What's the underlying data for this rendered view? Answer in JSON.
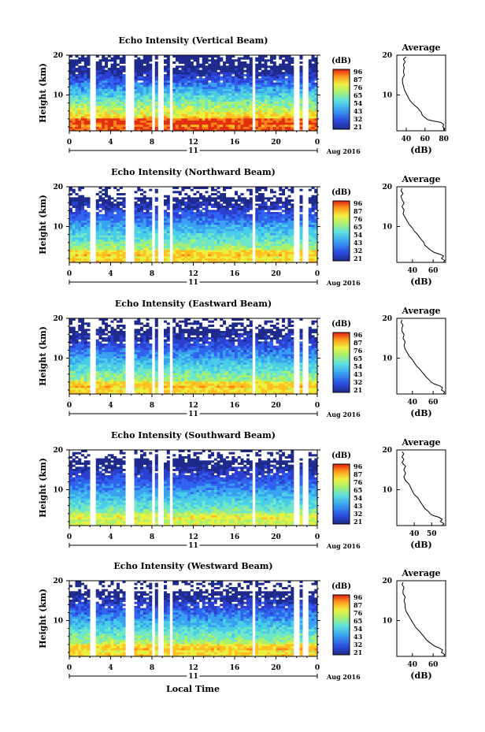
{
  "figure": {
    "x_axis_title": "Local Time",
    "date_label": "Aug 2016",
    "day_label": "11",
    "average_title": "Average",
    "average_xlabel": "(dB)",
    "colorbar_label": "(dB)",
    "height_label": "Height (km)"
  },
  "chart_data": [
    {
      "type": "heatmap",
      "title": "Echo Intensity (Vertical Beam)",
      "xlabel": "",
      "ylabel": "Height (km)",
      "x_ticks": [
        "0",
        "4",
        "8",
        "12",
        "16",
        "20",
        "0"
      ],
      "xlim": [
        0,
        24
      ],
      "ylim": [
        1,
        20
      ],
      "y_ticks": [
        "20",
        "10"
      ],
      "colorbar_ticks": [
        "96",
        "87",
        "76",
        "65",
        "54",
        "43",
        "32",
        "21"
      ],
      "average_ticks": [
        "40",
        "60",
        "80"
      ],
      "average_xlim": [
        30,
        82
      ],
      "average_profile": [
        [
          80,
          1
        ],
        [
          81,
          1.5
        ],
        [
          79,
          2
        ],
        [
          80,
          2.6
        ],
        [
          77,
          3.1
        ],
        [
          70,
          3.4
        ],
        [
          63,
          3.8
        ],
        [
          60,
          4.3
        ],
        [
          57,
          5
        ],
        [
          56,
          5.7
        ],
        [
          54,
          6.2
        ],
        [
          53,
          6.6
        ],
        [
          50,
          7.2
        ],
        [
          47,
          7.8
        ],
        [
          44,
          8.6
        ],
        [
          42,
          9.5
        ],
        [
          40,
          10.4
        ],
        [
          38,
          11.4
        ],
        [
          37,
          12.3
        ],
        [
          36,
          13.2
        ],
        [
          36,
          14.1
        ],
        [
          38,
          15
        ],
        [
          37,
          15.9
        ],
        [
          38,
          16.8
        ],
        [
          37,
          17.6
        ],
        [
          39,
          18.3
        ],
        [
          37,
          19
        ],
        [
          40,
          19.6
        ]
      ],
      "data_gaps_hours": [
        [
          2.1,
          2.5
        ],
        [
          5.3,
          6.2
        ],
        [
          7.9,
          8.3
        ],
        [
          8.7,
          9.2
        ],
        [
          9.7,
          10.1
        ],
        [
          17.7,
          18.1
        ],
        [
          21.8,
          22.2
        ],
        [
          22.7,
          23.0
        ]
      ]
    },
    {
      "type": "heatmap",
      "title": "Echo Intensity (Northward Beam)",
      "xlabel": "",
      "ylabel": "Height (km)",
      "x_ticks": [
        "0",
        "4",
        "8",
        "12",
        "16",
        "20",
        "0"
      ],
      "xlim": [
        0,
        24
      ],
      "ylim": [
        1,
        20
      ],
      "y_ticks": [
        "20",
        "10"
      ],
      "colorbar_ticks": [
        "96",
        "87",
        "76",
        "65",
        "54",
        "43",
        "32",
        "21"
      ],
      "average_ticks": [
        "40",
        "60"
      ],
      "average_xlim": [
        25,
        72
      ],
      "average_profile": [
        [
          70,
          1
        ],
        [
          71,
          1.5
        ],
        [
          68,
          2
        ],
        [
          70,
          2.6
        ],
        [
          66,
          3.1
        ],
        [
          61,
          3.5
        ],
        [
          58,
          4
        ],
        [
          55,
          4.6
        ],
        [
          52,
          5.3
        ],
        [
          51,
          6
        ],
        [
          49,
          6.6
        ],
        [
          47,
          7.3
        ],
        [
          45,
          8
        ],
        [
          42,
          8.8
        ],
        [
          40,
          9.6
        ],
        [
          37,
          10.5
        ],
        [
          35,
          11.4
        ],
        [
          33,
          12.3
        ],
        [
          31,
          13.2
        ],
        [
          32,
          14.1
        ],
        [
          30,
          15
        ],
        [
          32,
          15.9
        ],
        [
          30,
          16.8
        ],
        [
          29,
          17.6
        ],
        [
          31,
          18.3
        ],
        [
          29,
          19
        ],
        [
          30,
          19.6
        ]
      ],
      "data_gaps_hours": [
        [
          2.1,
          2.5
        ],
        [
          5.3,
          6.2
        ],
        [
          7.9,
          8.3
        ],
        [
          8.7,
          9.2
        ],
        [
          9.7,
          10.1
        ],
        [
          17.7,
          18.1
        ],
        [
          21.8,
          22.2
        ],
        [
          22.7,
          23.0
        ]
      ]
    },
    {
      "type": "heatmap",
      "title": "Echo Intensity (Eastward Beam)",
      "xlabel": "",
      "ylabel": "Height (km)",
      "x_ticks": [
        "0",
        "4",
        "8",
        "12",
        "16",
        "20",
        "0"
      ],
      "xlim": [
        0,
        24
      ],
      "ylim": [
        1,
        20
      ],
      "y_ticks": [
        "20",
        "10"
      ],
      "colorbar_ticks": [
        "96",
        "87",
        "76",
        "65",
        "54",
        "43",
        "32",
        "21"
      ],
      "average_ticks": [
        "40",
        "60"
      ],
      "average_xlim": [
        25,
        72
      ],
      "average_profile": [
        [
          70,
          1
        ],
        [
          71,
          1.5
        ],
        [
          68,
          2
        ],
        [
          69,
          2.6
        ],
        [
          66,
          3.1
        ],
        [
          61,
          3.5
        ],
        [
          58,
          4
        ],
        [
          56,
          4.6
        ],
        [
          53,
          5.3
        ],
        [
          51,
          6
        ],
        [
          49,
          6.6
        ],
        [
          47,
          7.3
        ],
        [
          44,
          8
        ],
        [
          42,
          8.8
        ],
        [
          40,
          9.6
        ],
        [
          37,
          10.5
        ],
        [
          35,
          11.4
        ],
        [
          33,
          12.3
        ],
        [
          32,
          13.2
        ],
        [
          33,
          14.1
        ],
        [
          31,
          15
        ],
        [
          32,
          15.9
        ],
        [
          30,
          16.8
        ],
        [
          30,
          17.6
        ],
        [
          31,
          18.3
        ],
        [
          29,
          19
        ],
        [
          30,
          19.6
        ]
      ],
      "data_gaps_hours": [
        [
          2.1,
          2.5
        ],
        [
          5.3,
          6.2
        ],
        [
          7.9,
          8.3
        ],
        [
          8.7,
          9.2
        ],
        [
          9.7,
          10.1
        ],
        [
          17.7,
          18.1
        ],
        [
          21.8,
          22.2
        ],
        [
          22.7,
          23.0
        ]
      ]
    },
    {
      "type": "heatmap",
      "title": "Echo Intensity (Southward Beam)",
      "xlabel": "",
      "ylabel": "Height (km)",
      "x_ticks": [
        "0",
        "4",
        "8",
        "12",
        "16",
        "20",
        "0"
      ],
      "xlim": [
        0,
        24
      ],
      "ylim": [
        1,
        20
      ],
      "y_ticks": [
        "20",
        "10"
      ],
      "colorbar_ticks": [
        "96",
        "87",
        "76",
        "65",
        "54",
        "43",
        "32",
        "21"
      ],
      "average_ticks": [
        "40",
        "50"
      ],
      "average_xlim": [
        30,
        58
      ],
      "average_profile": [
        [
          56,
          1
        ],
        [
          57,
          1.5
        ],
        [
          55,
          2
        ],
        [
          56,
          2.6
        ],
        [
          54,
          3.1
        ],
        [
          51,
          3.5
        ],
        [
          49,
          4
        ],
        [
          48,
          4.6
        ],
        [
          46,
          5.3
        ],
        [
          45,
          6
        ],
        [
          44,
          6.6
        ],
        [
          43,
          7.3
        ],
        [
          42,
          8
        ],
        [
          40,
          8.8
        ],
        [
          39,
          9.6
        ],
        [
          38,
          10.5
        ],
        [
          37,
          11.4
        ],
        [
          35,
          12.3
        ],
        [
          34,
          13.2
        ],
        [
          35,
          14.1
        ],
        [
          34,
          15
        ],
        [
          35,
          15.9
        ],
        [
          33,
          16.8
        ],
        [
          34,
          17.6
        ],
        [
          33,
          18.3
        ],
        [
          34,
          19
        ],
        [
          33,
          19.6
        ]
      ],
      "data_gaps_hours": [
        [
          2.1,
          2.5
        ],
        [
          5.3,
          6.2
        ],
        [
          7.9,
          8.3
        ],
        [
          8.7,
          9.2
        ],
        [
          9.7,
          10.1
        ],
        [
          17.7,
          18.1
        ],
        [
          21.8,
          22.2
        ],
        [
          22.7,
          23.0
        ]
      ]
    },
    {
      "type": "heatmap",
      "title": "Echo Intensity (Westward Beam)",
      "xlabel": "",
      "ylabel": "Height (km)",
      "x_ticks": [
        "0",
        "4",
        "8",
        "12",
        "16",
        "20",
        "0"
      ],
      "xlim": [
        0,
        24
      ],
      "ylim": [
        1,
        20
      ],
      "y_ticks": [
        "20",
        "10"
      ],
      "colorbar_ticks": [
        "96",
        "87",
        "76",
        "65",
        "54",
        "43",
        "32",
        "21"
      ],
      "average_ticks": [
        "40",
        "60"
      ],
      "average_xlim": [
        25,
        72
      ],
      "average_profile": [
        [
          70,
          1
        ],
        [
          71,
          1.5
        ],
        [
          68,
          2
        ],
        [
          69,
          2.6
        ],
        [
          66,
          3.1
        ],
        [
          62,
          3.5
        ],
        [
          59,
          4
        ],
        [
          56,
          4.6
        ],
        [
          53,
          5.3
        ],
        [
          51,
          6
        ],
        [
          49,
          6.6
        ],
        [
          47,
          7.3
        ],
        [
          44,
          8
        ],
        [
          42,
          8.8
        ],
        [
          40,
          9.6
        ],
        [
          38,
          10.5
        ],
        [
          36,
          11.4
        ],
        [
          34,
          12.3
        ],
        [
          33,
          13.2
        ],
        [
          33,
          14.1
        ],
        [
          32,
          15
        ],
        [
          33,
          15.9
        ],
        [
          31,
          16.8
        ],
        [
          31,
          17.6
        ],
        [
          32,
          18.3
        ],
        [
          30,
          19
        ],
        [
          31,
          19.6
        ]
      ],
      "data_gaps_hours": [
        [
          2.1,
          2.5
        ],
        [
          5.3,
          6.2
        ],
        [
          7.9,
          8.3
        ],
        [
          8.7,
          9.2
        ],
        [
          9.7,
          10.1
        ],
        [
          17.7,
          18.1
        ],
        [
          21.8,
          22.2
        ],
        [
          22.7,
          23.0
        ]
      ]
    }
  ]
}
